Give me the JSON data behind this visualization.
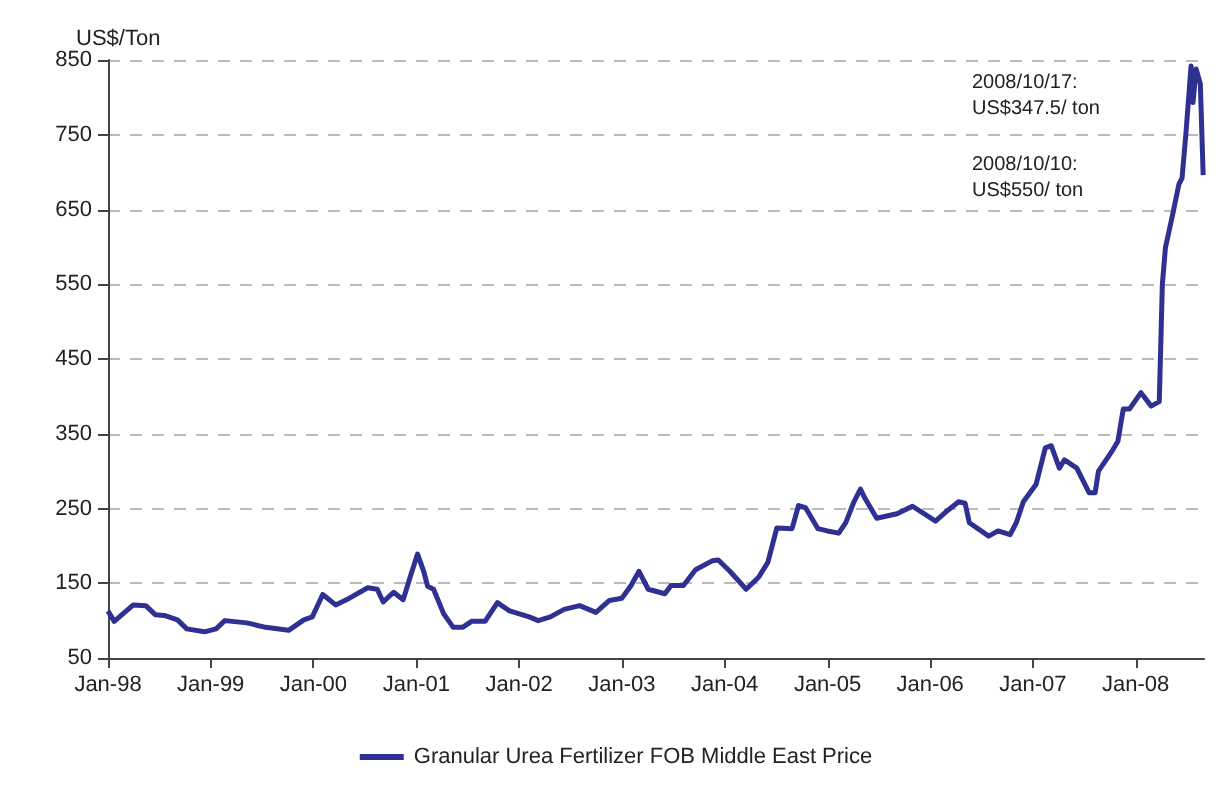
{
  "chart_data": {
    "type": "line",
    "ylabel": "US$/Ton",
    "annotations": [
      "2008/10/17:\nUS$347.5/ ton",
      "2008/10/10:\nUS$550/ ton"
    ],
    "x": [
      "1998-01-01",
      "1998-01-23",
      "1998-04-01",
      "1998-05-15",
      "1998-06-18",
      "1998-07-20",
      "1998-09-05",
      "1998-10-08",
      "1998-12-10",
      "1999-01-20",
      "1999-02-20",
      "1999-05-10",
      "1999-07-15",
      "1999-10-05",
      "1999-11-28",
      "1999-12-28",
      "2000-02-03",
      "2000-03-20",
      "2000-05-08",
      "2000-07-12",
      "2000-08-15",
      "2000-09-05",
      "2000-10-12",
      "2000-11-15",
      "2000-12-13",
      "2001-01-05",
      "2001-01-27",
      "2001-02-10",
      "2001-03-03",
      "2001-04-08",
      "2001-05-12",
      "2001-06-14",
      "2001-07-16",
      "2001-09-02",
      "2001-10-16",
      "2001-11-28",
      "2002-02-06",
      "2002-03-10",
      "2002-04-22",
      "2002-06-10",
      "2002-08-04",
      "2002-10-01",
      "2002-11-18",
      "2003-01-01",
      "2003-02-03",
      "2003-03-03",
      "2003-04-05",
      "2003-06-03",
      "2003-06-25",
      "2003-08-08",
      "2003-09-20",
      "2003-11-18",
      "2003-12-10",
      "2004-01-20",
      "2004-03-18",
      "2004-05-01",
      "2004-06-03",
      "2004-07-05",
      "2004-08-28",
      "2004-09-20",
      "2004-10-15",
      "2004-11-28",
      "2005-01-01",
      "2005-02-10",
      "2005-03-07",
      "2005-04-05",
      "2005-04-28",
      "2005-05-15",
      "2005-06-25",
      "2005-09-05",
      "2005-10-30",
      "2006-01-20",
      "2006-03-03",
      "2006-04-12",
      "2006-05-05",
      "2006-05-20",
      "2006-07-28",
      "2006-08-30",
      "2006-10-12",
      "2006-11-03",
      "2006-11-28",
      "2007-01-12",
      "2007-02-14",
      "2007-03-07",
      "2007-04-05",
      "2007-04-23",
      "2007-06-06",
      "2007-07-20",
      "2007-08-10",
      "2007-08-22",
      "2007-10-08",
      "2007-10-30",
      "2007-11-18",
      "2007-12-10",
      "2008-01-20",
      "2008-02-25",
      "2008-03-25",
      "2008-04-05",
      "2008-04-16",
      "2008-05-12",
      "2008-06-03",
      "2008-06-14",
      "2008-06-28",
      "2008-07-16",
      "2008-07-23",
      "2008-08-03",
      "2008-08-18",
      "2008-08-28"
    ],
    "series": [
      {
        "name": "Granular Urea Fertilizer FOB Middle East Price",
        "color": "#2e3192",
        "values": [
          113,
          99,
          121,
          120,
          108,
          107,
          101,
          89,
          85,
          89,
          100,
          97,
          91,
          87,
          101,
          105,
          135,
          121,
          130,
          144,
          142,
          125,
          138,
          128,
          162,
          189,
          166,
          146,
          142,
          109,
          91,
          91,
          99,
          99,
          124,
          113,
          105,
          100,
          105,
          115,
          120,
          111,
          127,
          130,
          147,
          166,
          142,
          136,
          147,
          147,
          168,
          180,
          181,
          166,
          142,
          158,
          178,
          224,
          223,
          254,
          251,
          223,
          220,
          217,
          231,
          259,
          276,
          263,
          237,
          243,
          253,
          233,
          247,
          259,
          257,
          231,
          213,
          220,
          215,
          231,
          259,
          282,
          331,
          334,
          304,
          315,
          304,
          271,
          271,
          300,
          326,
          340,
          383,
          383,
          405,
          387,
          393,
          550,
          599,
          644,
          684,
          692,
          753,
          842,
          793,
          838,
          818,
          696
        ]
      }
    ],
    "xlim": [
      "1998-01-01",
      "2008-08-31"
    ],
    "xticks": [
      {
        "value": "1998-01-01",
        "label": "Jan-98"
      },
      {
        "value": "1999-01-01",
        "label": "Jan-99"
      },
      {
        "value": "2000-01-01",
        "label": "Jan-00"
      },
      {
        "value": "2001-01-01",
        "label": "Jan-01"
      },
      {
        "value": "2002-01-01",
        "label": "Jan-02"
      },
      {
        "value": "2003-01-01",
        "label": "Jan-03"
      },
      {
        "value": "2004-01-01",
        "label": "Jan-04"
      },
      {
        "value": "2005-01-01",
        "label": "Jan-05"
      },
      {
        "value": "2006-01-01",
        "label": "Jan-06"
      },
      {
        "value": "2007-01-01",
        "label": "Jan-07"
      },
      {
        "value": "2008-01-01",
        "label": "Jan-08"
      }
    ],
    "ylim": [
      50,
      850
    ],
    "yticks": [
      50,
      150,
      250,
      350,
      450,
      550,
      650,
      750,
      850
    ],
    "grid": "y",
    "legend": "bottom",
    "marker": "none",
    "line_style": "solid"
  }
}
